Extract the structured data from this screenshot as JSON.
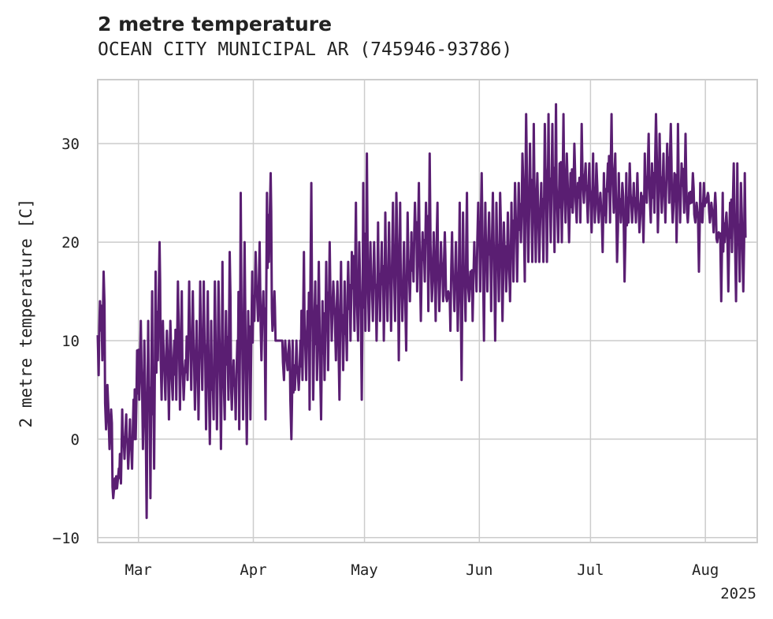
{
  "chart_data": {
    "type": "line",
    "title": "2 metre temperature",
    "subtitle": "OCEAN CITY MUNICIPAL AR (745946-93786)",
    "ylabel": "2 metre temperature [C]",
    "xlabel": "",
    "year_label": "2025",
    "x_range": [
      "2025-02-18",
      "2025-08-15"
    ],
    "ylim": [
      -10.5,
      36.5
    ],
    "grid": true,
    "y_ticks": [
      -10,
      0,
      10,
      20,
      30
    ],
    "x_ticks": [
      {
        "date": "2025-03-01",
        "label": "Mar"
      },
      {
        "date": "2025-04-01",
        "label": "Apr"
      },
      {
        "date": "2025-05-01",
        "label": "May"
      },
      {
        "date": "2025-06-01",
        "label": "Jun"
      },
      {
        "date": "2025-07-01",
        "label": "Jul"
      },
      {
        "date": "2025-08-01",
        "label": "Aug"
      }
    ],
    "line_color": "#5a1e72",
    "series": [
      {
        "x": [
          "2025-02-18",
          "2025-02-19",
          "2025-02-20",
          "2025-02-21",
          "2025-02-22",
          "2025-02-23",
          "2025-02-24",
          "2025-02-25",
          "2025-02-26",
          "2025-02-27",
          "2025-02-28",
          "2025-03-01",
          "2025-03-02",
          "2025-03-03",
          "2025-03-04",
          "2025-03-05",
          "2025-03-06",
          "2025-03-07",
          "2025-03-08",
          "2025-03-09",
          "2025-03-10",
          "2025-03-11",
          "2025-03-12",
          "2025-03-13",
          "2025-03-14",
          "2025-03-15",
          "2025-03-16",
          "2025-03-17",
          "2025-03-18",
          "2025-03-19",
          "2025-03-20",
          "2025-03-21",
          "2025-03-22",
          "2025-03-23",
          "2025-03-24",
          "2025-03-25",
          "2025-03-26",
          "2025-03-27",
          "2025-03-28",
          "2025-03-29",
          "2025-03-30",
          "2025-03-31",
          "2025-04-01",
          "2025-04-02",
          "2025-04-03",
          "2025-04-04",
          "2025-04-05",
          "2025-04-06",
          "2025-04-07",
          "2025-04-08",
          "2025-04-09",
          "2025-04-10",
          "2025-04-11",
          "2025-04-12",
          "2025-04-13",
          "2025-04-14",
          "2025-04-15",
          "2025-04-16",
          "2025-04-17",
          "2025-04-18",
          "2025-04-19",
          "2025-04-20",
          "2025-04-21",
          "2025-04-22",
          "2025-04-23",
          "2025-04-24",
          "2025-04-25",
          "2025-04-26",
          "2025-04-27",
          "2025-04-28",
          "2025-04-29",
          "2025-04-30",
          "2025-05-01",
          "2025-05-02",
          "2025-05-03",
          "2025-05-04",
          "2025-05-05",
          "2025-05-06",
          "2025-05-07",
          "2025-05-08",
          "2025-05-09",
          "2025-05-10",
          "2025-05-11",
          "2025-05-12",
          "2025-05-13",
          "2025-05-14",
          "2025-05-15",
          "2025-05-16",
          "2025-05-17",
          "2025-05-18",
          "2025-05-19",
          "2025-05-20",
          "2025-05-21",
          "2025-05-22",
          "2025-05-23",
          "2025-05-24",
          "2025-05-25",
          "2025-05-26",
          "2025-05-27",
          "2025-05-28",
          "2025-05-29",
          "2025-05-30",
          "2025-05-31",
          "2025-06-01",
          "2025-06-02",
          "2025-06-03",
          "2025-06-04",
          "2025-06-05",
          "2025-06-06",
          "2025-06-07",
          "2025-06-08",
          "2025-06-09",
          "2025-06-10",
          "2025-06-11",
          "2025-06-12",
          "2025-06-13",
          "2025-06-14",
          "2025-06-15",
          "2025-06-16",
          "2025-06-17",
          "2025-06-18",
          "2025-06-19",
          "2025-06-20",
          "2025-06-21",
          "2025-06-22",
          "2025-06-23",
          "2025-06-24",
          "2025-06-25",
          "2025-06-26",
          "2025-06-27",
          "2025-06-28",
          "2025-06-29",
          "2025-06-30",
          "2025-07-01",
          "2025-07-02",
          "2025-07-03",
          "2025-07-04",
          "2025-07-05",
          "2025-07-06",
          "2025-07-07",
          "2025-07-08",
          "2025-07-09",
          "2025-07-10",
          "2025-07-11",
          "2025-07-12",
          "2025-07-13",
          "2025-07-14",
          "2025-07-15",
          "2025-07-16",
          "2025-07-17",
          "2025-07-18",
          "2025-07-19",
          "2025-07-20",
          "2025-07-21",
          "2025-07-22",
          "2025-07-23",
          "2025-07-24",
          "2025-07-25",
          "2025-07-26",
          "2025-07-27",
          "2025-07-28",
          "2025-07-29",
          "2025-07-30",
          "2025-07-31",
          "2025-08-01",
          "2025-08-02",
          "2025-08-03",
          "2025-08-04",
          "2025-08-05",
          "2025-08-06",
          "2025-08-07",
          "2025-08-08",
          "2025-08-09",
          "2025-08-10",
          "2025-08-11",
          "2025-08-12",
          "2025-08-13",
          "2025-08-14",
          "2025-08-15"
        ],
        "min": [
          6.5,
          8,
          1,
          -1,
          -6,
          -5,
          -4.5,
          -2,
          -3,
          -3,
          0,
          4,
          -1,
          -8,
          -6,
          -3,
          8,
          4,
          4,
          2,
          4,
          4,
          3,
          4,
          6,
          5,
          3,
          2,
          5,
          1,
          -0.5,
          2,
          1,
          -1,
          2,
          4,
          3,
          2,
          1,
          2,
          -0.5,
          2,
          12,
          12,
          8,
          2,
          18,
          11,
          10,
          10,
          6,
          7,
          0,
          5,
          5,
          6,
          6,
          3,
          4,
          6,
          2,
          6,
          7,
          10,
          8,
          4,
          7,
          8,
          10,
          11,
          10,
          4,
          11,
          11,
          12,
          10,
          12,
          10,
          12,
          11,
          12,
          8,
          12,
          9,
          14,
          16,
          15,
          12,
          16,
          13,
          14,
          12,
          13,
          14,
          14,
          11,
          13,
          11,
          6,
          12,
          14,
          12,
          15,
          15,
          10,
          15,
          13,
          10,
          14,
          12,
          15,
          14,
          16,
          16,
          20,
          16,
          18,
          18,
          18,
          18,
          18,
          18,
          20,
          19,
          20,
          20,
          22,
          20,
          23,
          22,
          22,
          24,
          22,
          21,
          22,
          22,
          19,
          22,
          22,
          23,
          18,
          22,
          16,
          22,
          22,
          22,
          21,
          20,
          24,
          22,
          23,
          21,
          23,
          22,
          24,
          22,
          20,
          22,
          23,
          22,
          24,
          22,
          17,
          22,
          24,
          22,
          21,
          20,
          14,
          20,
          15,
          19,
          14,
          16,
          15,
          21,
          17,
          14,
          15,
          20,
          22,
          22,
          22
        ],
        "max": [
          14,
          17,
          5.5,
          3,
          -4,
          -3,
          3,
          2.5,
          2,
          4,
          9,
          12,
          10,
          12,
          15,
          17,
          20,
          12,
          11,
          12,
          10,
          16,
          15,
          8,
          16,
          15,
          12,
          16,
          16,
          15,
          12,
          16,
          16,
          18,
          13,
          19,
          8,
          10,
          25,
          20,
          13,
          17,
          19,
          20,
          15,
          25,
          27,
          15,
          10,
          10,
          10,
          10,
          10,
          10,
          10,
          19,
          13,
          26,
          16,
          18,
          14,
          18,
          20,
          16,
          16,
          18,
          16,
          18,
          19,
          24,
          20,
          26,
          29,
          20,
          20,
          22,
          20,
          23,
          22,
          24,
          25,
          24,
          20,
          23,
          21,
          24,
          26,
          21,
          24,
          29,
          21,
          24,
          20,
          21,
          15,
          21,
          20,
          24,
          23,
          25,
          17,
          20,
          24,
          27,
          24,
          23,
          25,
          24,
          25,
          22,
          23,
          24,
          26,
          26,
          29,
          33,
          30,
          32,
          27,
          26,
          32,
          33,
          32,
          34,
          28,
          33,
          29,
          27,
          30,
          26,
          32,
          28,
          28,
          29,
          28,
          25,
          27,
          28,
          33,
          29,
          27,
          26,
          27,
          28,
          26,
          27,
          25,
          29,
          31,
          28,
          33,
          31,
          29,
          30,
          32,
          27,
          32,
          28,
          31,
          25,
          27,
          24,
          26,
          26,
          25,
          24,
          25,
          21,
          25,
          23,
          24,
          28,
          28,
          26,
          27
        ],
        "end_value": 24
      }
    ]
  }
}
